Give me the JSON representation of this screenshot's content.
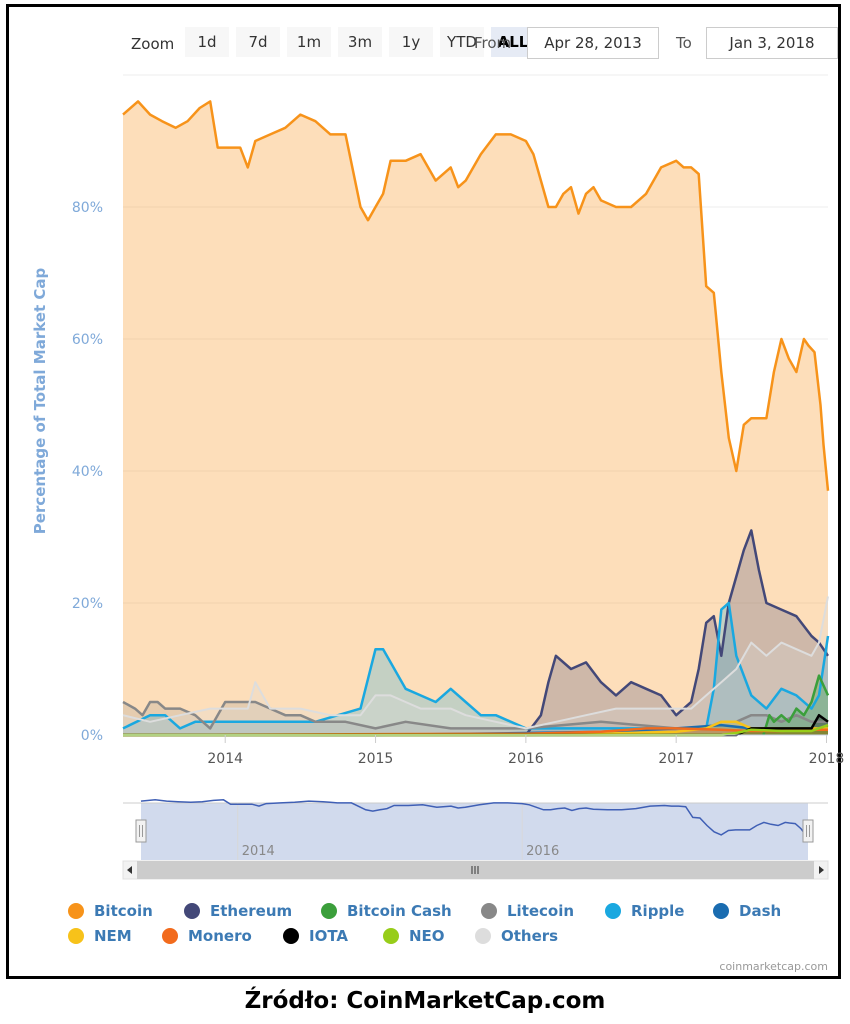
{
  "toolbar": {
    "zoom_label": "Zoom",
    "buttons": [
      "1d",
      "7d",
      "1m",
      "3m",
      "1y",
      "YTD",
      "ALL"
    ],
    "active_button": "ALL",
    "from_label": "From",
    "from_value": "Apr 28, 2013",
    "to_label": "To",
    "to_value": "Jan 3, 2018"
  },
  "credit": "coinmarketcap.com",
  "source": "Źródło: CoinMarketCap.com",
  "colors": {
    "bitcoin": "#f7931a",
    "ethereum": "#434878",
    "bitcoin_cash": "#3b9f3b",
    "litecoin": "#888888",
    "ripple": "#1aa8e0",
    "dash": "#1a6cb0",
    "nem": "#f7c21a",
    "monero": "#f26b1d",
    "iota": "#000000",
    "neo": "#97cd1a",
    "others": "#dddddd",
    "navigator": "#3f5fb5"
  },
  "chart_data": {
    "type": "area",
    "ylabel": "Percentage of Total Market Cap",
    "ylim": [
      0,
      100
    ],
    "yticks": [
      0,
      20,
      40,
      60,
      80
    ],
    "ytick_labels": [
      "0%",
      "20%",
      "40%",
      "60%",
      "80%"
    ],
    "xlim": [
      2013.32,
      2018.01
    ],
    "xticks": [
      2014,
      2015,
      2016,
      2017,
      2018
    ],
    "xtick_labels": [
      "2014",
      "2015",
      "2016",
      "2017",
      "2018"
    ],
    "navigator_ticks": [
      2014,
      2016
    ],
    "navigator_tick_labels": [
      "2014",
      "2016"
    ],
    "series": [
      {
        "name": "Bitcoin",
        "key": "bitcoin",
        "x": [
          2013.32,
          2013.42,
          2013.5,
          2013.58,
          2013.67,
          2013.75,
          2013.83,
          2013.9,
          2013.95,
          2014.0,
          2014.1,
          2014.15,
          2014.2,
          2014.3,
          2014.4,
          2014.5,
          2014.6,
          2014.65,
          2014.7,
          2014.8,
          2014.9,
          2014.95,
          2015.0,
          2015.05,
          2015.1,
          2015.2,
          2015.3,
          2015.4,
          2015.5,
          2015.55,
          2015.6,
          2015.7,
          2015.8,
          2015.9,
          2016.0,
          2016.05,
          2016.15,
          2016.2,
          2016.25,
          2016.3,
          2016.35,
          2016.4,
          2016.45,
          2016.5,
          2016.6,
          2016.7,
          2016.8,
          2016.9,
          2017.0,
          2017.05,
          2017.1,
          2017.15,
          2017.2,
          2017.25,
          2017.3,
          2017.35,
          2017.4,
          2017.45,
          2017.5,
          2017.55,
          2017.6,
          2017.65,
          2017.7,
          2017.75,
          2017.8,
          2017.85,
          2017.88,
          2017.92,
          2017.96,
          2017.98,
          2018.01
        ],
        "values": [
          94,
          96,
          94,
          93,
          92,
          93,
          95,
          96,
          89,
          89,
          89,
          86,
          90,
          91,
          92,
          94,
          93,
          92,
          91,
          91,
          80,
          78,
          80,
          82,
          87,
          87,
          88,
          84,
          86,
          83,
          84,
          88,
          91,
          91,
          90,
          88,
          80,
          80,
          82,
          83,
          79,
          82,
          83,
          81,
          80,
          80,
          82,
          86,
          87,
          86,
          86,
          85,
          68,
          67,
          55,
          45,
          40,
          47,
          48,
          48,
          48,
          55,
          60,
          57,
          55,
          60,
          59,
          58,
          50,
          44,
          37
        ]
      },
      {
        "name": "Ethereum",
        "key": "ethereum",
        "x": [
          2016.0,
          2016.1,
          2016.15,
          2016.2,
          2016.3,
          2016.4,
          2016.5,
          2016.6,
          2016.7,
          2016.8,
          2016.9,
          2017.0,
          2017.1,
          2017.15,
          2017.2,
          2017.25,
          2017.3,
          2017.35,
          2017.4,
          2017.45,
          2017.5,
          2017.55,
          2017.6,
          2017.7,
          2017.8,
          2017.9,
          2017.95,
          2018.01
        ],
        "values": [
          0,
          3,
          8,
          12,
          10,
          11,
          8,
          6,
          8,
          7,
          6,
          3,
          5,
          10,
          17,
          18,
          12,
          20,
          24,
          28,
          31,
          25,
          20,
          19,
          18,
          15,
          14,
          12
        ]
      },
      {
        "name": "Ripple",
        "key": "ripple",
        "x": [
          2013.32,
          2013.5,
          2013.6,
          2013.7,
          2013.8,
          2014.0,
          2014.3,
          2014.6,
          2014.9,
          2015.0,
          2015.05,
          2015.1,
          2015.2,
          2015.3,
          2015.4,
          2015.5,
          2015.6,
          2015.7,
          2015.8,
          2016.0,
          2016.3,
          2016.6,
          2016.9,
          2017.1,
          2017.2,
          2017.25,
          2017.3,
          2017.35,
          2017.4,
          2017.5,
          2017.6,
          2017.7,
          2017.8,
          2017.9,
          2017.95,
          2018.01
        ],
        "values": [
          1,
          3,
          3,
          1,
          2,
          2,
          2,
          2,
          4,
          13,
          13,
          11,
          7,
          6,
          5,
          7,
          5,
          3,
          3,
          1,
          1,
          1,
          1,
          1,
          1,
          7,
          19,
          20,
          12,
          6,
          4,
          7,
          6,
          4,
          6,
          15
        ]
      },
      {
        "name": "Litecoin",
        "key": "litecoin",
        "x": [
          2013.32,
          2013.4,
          2013.45,
          2013.5,
          2013.55,
          2013.6,
          2013.7,
          2013.8,
          2013.9,
          2014.0,
          2014.1,
          2014.2,
          2014.3,
          2014.4,
          2014.5,
          2014.6,
          2014.8,
          2015.0,
          2015.2,
          2015.5,
          2015.8,
          2016.0,
          2016.5,
          2017.0,
          2017.2,
          2017.3,
          2017.4,
          2017.5,
          2017.6,
          2017.7,
          2017.8,
          2017.9,
          2018.01
        ],
        "values": [
          5,
          4,
          3,
          5,
          5,
          4,
          4,
          3,
          1,
          5,
          5,
          5,
          4,
          3,
          3,
          2,
          2,
          1,
          2,
          1,
          1,
          1,
          2,
          1,
          1,
          2,
          2,
          3,
          3,
          2,
          3,
          2,
          2
        ]
      },
      {
        "name": "Others",
        "key": "others",
        "x": [
          2013.32,
          2013.5,
          2013.7,
          2013.9,
          2014.0,
          2014.1,
          2014.15,
          2014.2,
          2014.3,
          2014.5,
          2014.7,
          2014.9,
          2015.0,
          2015.1,
          2015.2,
          2015.3,
          2015.4,
          2015.5,
          2015.6,
          2015.8,
          2016.0,
          2016.2,
          2016.4,
          2016.6,
          2016.8,
          2017.0,
          2017.1,
          2017.2,
          2017.3,
          2017.4,
          2017.5,
          2017.6,
          2017.7,
          2017.8,
          2017.9,
          2017.95,
          2018.01
        ],
        "values": [
          3,
          2,
          3,
          4,
          4,
          4,
          4,
          8,
          4,
          4,
          3,
          3,
          6,
          6,
          5,
          4,
          4,
          4,
          3,
          2,
          1,
          2,
          3,
          4,
          4,
          4,
          4,
          6,
          8,
          10,
          14,
          12,
          14,
          13,
          12,
          14,
          21
        ]
      },
      {
        "name": "Bitcoin Cash",
        "key": "bitcoin_cash",
        "x": [
          2017.58,
          2017.62,
          2017.65,
          2017.7,
          2017.75,
          2017.8,
          2017.85,
          2017.9,
          2017.95,
          2018.01
        ],
        "values": [
          0,
          3,
          2,
          3,
          2,
          4,
          3,
          5,
          9,
          6
        ]
      },
      {
        "name": "Dash",
        "key": "dash",
        "x": [
          2013.32,
          2014.0,
          2015.0,
          2016.0,
          2016.5,
          2017.0,
          2017.3,
          2017.5,
          2017.7,
          2017.9,
          2018.01
        ],
        "values": [
          0,
          0,
          0,
          0.3,
          0.5,
          1,
          1.5,
          1,
          1,
          1,
          1
        ]
      },
      {
        "name": "NEM",
        "key": "nem",
        "x": [
          2013.32,
          2016.0,
          2016.5,
          2017.0,
          2017.2,
          2017.3,
          2017.4,
          2017.5,
          2017.7,
          2017.9,
          2018.01
        ],
        "values": [
          0,
          0,
          0.2,
          0.5,
          1,
          2,
          2,
          1,
          1,
          1,
          1
        ]
      },
      {
        "name": "Monero",
        "key": "monero",
        "x": [
          2013.32,
          2016.0,
          2016.5,
          2016.8,
          2017.0,
          2017.3,
          2017.5,
          2017.7,
          2017.9,
          2018.01
        ],
        "values": [
          0,
          0.2,
          0.5,
          1,
          1,
          0.8,
          0.6,
          0.6,
          0.8,
          0.8
        ]
      },
      {
        "name": "IOTA",
        "key": "iota",
        "x": [
          2013.32,
          2017.4,
          2017.45,
          2017.5,
          2017.7,
          2017.9,
          2017.95,
          2018.01
        ],
        "values": [
          0,
          0,
          0.5,
          1,
          1,
          1,
          3,
          2
        ]
      },
      {
        "name": "NEO",
        "key": "neo",
        "x": [
          2013.32,
          2017.3,
          2017.4,
          2017.5,
          2017.7,
          2017.9,
          2018.01
        ],
        "values": [
          0,
          0,
          0.3,
          0.8,
          0.6,
          0.6,
          1.5
        ]
      }
    ],
    "legend": [
      "Bitcoin",
      "Ethereum",
      "Bitcoin Cash",
      "Litecoin",
      "Ripple",
      "Dash",
      "NEM",
      "Monero",
      "IOTA",
      "NEO",
      "Others"
    ]
  }
}
